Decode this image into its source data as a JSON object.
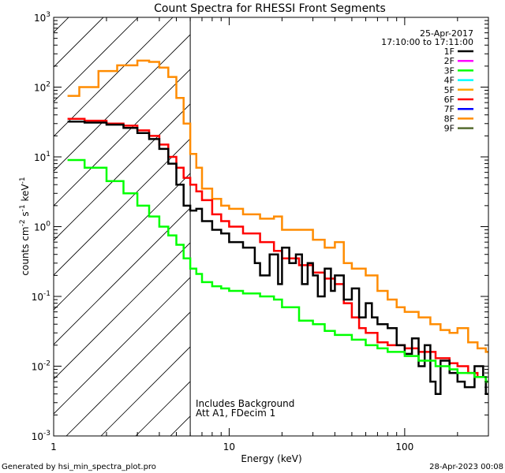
{
  "chart_data": {
    "type": "line",
    "title": "Count Spectra for RHESSI Front Segments",
    "xlabel": "Energy (keV)",
    "ylabel_parts": {
      "base": "counts cm",
      "exp1": "-2",
      "mid": " s",
      "exp2": "-1",
      "mid2": " keV",
      "exp3": "-1"
    },
    "xscale": "log",
    "yscale": "log",
    "xlim": [
      1,
      300
    ],
    "ylim": [
      0.001,
      1000
    ],
    "x_ticks": [
      {
        "value": 1,
        "label": "1"
      },
      {
        "value": 10,
        "label": "10"
      },
      {
        "value": 100,
        "label": "100"
      }
    ],
    "y_ticks": [
      {
        "value": 1000,
        "base": "10",
        "exp": "3"
      },
      {
        "value": 100,
        "base": "10",
        "exp": "2"
      },
      {
        "value": 10,
        "base": "10",
        "exp": "1"
      },
      {
        "value": 1,
        "base": "10",
        "exp": "0"
      },
      {
        "value": 0.1,
        "base": "10",
        "exp": "-1"
      },
      {
        "value": 0.01,
        "base": "10",
        "exp": "-2"
      },
      {
        "value": 0.001,
        "base": "10",
        "exp": "-3"
      }
    ],
    "hatched_region": {
      "x_start": 1,
      "x_end": 6
    },
    "cutoff_line_x": 6,
    "legend": {
      "date": "25-Apr-2017",
      "time_range": "17:10:00 to 17:11:00",
      "entries": [
        {
          "label": "1F",
          "color": "#000000"
        },
        {
          "label": "2F",
          "color": "#ff00ff"
        },
        {
          "label": "3F",
          "color": "#00ff00"
        },
        {
          "label": "4F",
          "color": "#00ffff"
        },
        {
          "label": "5F",
          "color": "#ffa500"
        },
        {
          "label": "6F",
          "color": "#ff0000"
        },
        {
          "label": "7F",
          "color": "#0000ff"
        },
        {
          "label": "8F",
          "color": "#ff8c00"
        },
        {
          "label": "9F",
          "color": "#556b2f"
        }
      ]
    },
    "annotations": [
      "Includes Background",
      "Att A1, FDecim 1"
    ],
    "series": [
      {
        "name": "8F",
        "color": "#ff8c00",
        "points": [
          [
            1.2,
            75
          ],
          [
            1.4,
            100
          ],
          [
            1.8,
            170
          ],
          [
            2.3,
            205
          ],
          [
            3.0,
            240
          ],
          [
            3.5,
            230
          ],
          [
            4.0,
            190
          ],
          [
            4.5,
            140
          ],
          [
            5.0,
            70
          ],
          [
            5.5,
            30
          ],
          [
            6.0,
            11
          ],
          [
            6.5,
            7
          ],
          [
            7.0,
            3.5
          ],
          [
            8.0,
            2.5
          ],
          [
            9.0,
            2.0
          ],
          [
            10,
            1.8
          ],
          [
            12,
            1.5
          ],
          [
            15,
            1.3
          ],
          [
            18,
            1.4
          ],
          [
            20,
            0.9
          ],
          [
            25,
            0.9
          ],
          [
            30,
            0.65
          ],
          [
            35,
            0.5
          ],
          [
            40,
            0.6
          ],
          [
            45,
            0.3
          ],
          [
            50,
            0.25
          ],
          [
            60,
            0.2
          ],
          [
            70,
            0.12
          ],
          [
            80,
            0.09
          ],
          [
            90,
            0.07
          ],
          [
            100,
            0.06
          ],
          [
            120,
            0.05
          ],
          [
            140,
            0.04
          ],
          [
            160,
            0.033
          ],
          [
            180,
            0.03
          ],
          [
            200,
            0.035
          ],
          [
            230,
            0.022
          ],
          [
            260,
            0.018
          ],
          [
            290,
            0.016
          ]
        ]
      },
      {
        "name": "6F",
        "color": "#ff0000",
        "points": [
          [
            1.2,
            35
          ],
          [
            1.5,
            33
          ],
          [
            2.0,
            30
          ],
          [
            2.5,
            28
          ],
          [
            3.0,
            24
          ],
          [
            3.5,
            20
          ],
          [
            4.0,
            15
          ],
          [
            4.5,
            10
          ],
          [
            5.0,
            7
          ],
          [
            5.5,
            5
          ],
          [
            6.0,
            4
          ],
          [
            6.5,
            3.2
          ],
          [
            7.0,
            2.4
          ],
          [
            8.0,
            1.5
          ],
          [
            9.0,
            1.2
          ],
          [
            10,
            1.0
          ],
          [
            12,
            0.8
          ],
          [
            15,
            0.6
          ],
          [
            18,
            0.45
          ],
          [
            20,
            0.35
          ],
          [
            25,
            0.28
          ],
          [
            30,
            0.22
          ],
          [
            35,
            0.18
          ],
          [
            40,
            0.15
          ],
          [
            45,
            0.08
          ],
          [
            50,
            0.05
          ],
          [
            55,
            0.035
          ],
          [
            60,
            0.03
          ],
          [
            70,
            0.022
          ],
          [
            80,
            0.02
          ],
          [
            100,
            0.018
          ],
          [
            120,
            0.016
          ],
          [
            150,
            0.013
          ],
          [
            180,
            0.011
          ],
          [
            200,
            0.01
          ],
          [
            230,
            0.008
          ],
          [
            260,
            0.007
          ],
          [
            290,
            0.006
          ]
        ]
      },
      {
        "name": "1F",
        "color": "#000000",
        "points": [
          [
            1.2,
            32
          ],
          [
            1.5,
            31
          ],
          [
            2.0,
            29
          ],
          [
            2.5,
            26
          ],
          [
            3.0,
            22
          ],
          [
            3.5,
            18
          ],
          [
            4.0,
            13
          ],
          [
            4.5,
            8
          ],
          [
            5.0,
            4
          ],
          [
            5.5,
            2
          ],
          [
            6.0,
            1.7
          ],
          [
            6.5,
            1.8
          ],
          [
            7.0,
            1.2
          ],
          [
            8.0,
            0.9
          ],
          [
            9.0,
            0.8
          ],
          [
            10,
            0.6
          ],
          [
            12,
            0.5
          ],
          [
            14,
            0.3
          ],
          [
            15,
            0.2
          ],
          [
            17,
            0.4
          ],
          [
            19,
            0.15
          ],
          [
            20,
            0.5
          ],
          [
            22,
            0.3
          ],
          [
            24,
            0.4
          ],
          [
            26,
            0.15
          ],
          [
            28,
            0.3
          ],
          [
            30,
            0.2
          ],
          [
            32,
            0.1
          ],
          [
            35,
            0.25
          ],
          [
            38,
            0.12
          ],
          [
            40,
            0.2
          ],
          [
            45,
            0.09
          ],
          [
            50,
            0.13
          ],
          [
            55,
            0.05
          ],
          [
            60,
            0.08
          ],
          [
            65,
            0.05
          ],
          [
            70,
            0.04
          ],
          [
            80,
            0.035
          ],
          [
            90,
            0.02
          ],
          [
            100,
            0.015
          ],
          [
            110,
            0.025
          ],
          [
            120,
            0.01
          ],
          [
            130,
            0.02
          ],
          [
            140,
            0.006
          ],
          [
            150,
            0.004
          ],
          [
            160,
            0.012
          ],
          [
            180,
            0.008
          ],
          [
            200,
            0.006
          ],
          [
            220,
            0.005
          ],
          [
            250,
            0.01
          ],
          [
            280,
            0.007
          ],
          [
            290,
            0.004
          ]
        ]
      },
      {
        "name": "3F",
        "color": "#00ff00",
        "points": [
          [
            1.2,
            9
          ],
          [
            1.5,
            7
          ],
          [
            2.0,
            4.5
          ],
          [
            2.5,
            3
          ],
          [
            3.0,
            2
          ],
          [
            3.5,
            1.4
          ],
          [
            4.0,
            1.0
          ],
          [
            4.5,
            0.75
          ],
          [
            5.0,
            0.55
          ],
          [
            5.5,
            0.35
          ],
          [
            6.0,
            0.25
          ],
          [
            6.5,
            0.21
          ],
          [
            7.0,
            0.16
          ],
          [
            8.0,
            0.14
          ],
          [
            9.0,
            0.13
          ],
          [
            10,
            0.12
          ],
          [
            12,
            0.11
          ],
          [
            15,
            0.1
          ],
          [
            18,
            0.09
          ],
          [
            20,
            0.07
          ],
          [
            25,
            0.045
          ],
          [
            30,
            0.04
          ],
          [
            35,
            0.032
          ],
          [
            40,
            0.028
          ],
          [
            50,
            0.024
          ],
          [
            60,
            0.02
          ],
          [
            70,
            0.018
          ],
          [
            80,
            0.016
          ],
          [
            100,
            0.014
          ],
          [
            120,
            0.012
          ],
          [
            150,
            0.01
          ],
          [
            180,
            0.009
          ],
          [
            200,
            0.008
          ],
          [
            250,
            0.007
          ],
          [
            290,
            0.006
          ]
        ]
      }
    ]
  }
}
